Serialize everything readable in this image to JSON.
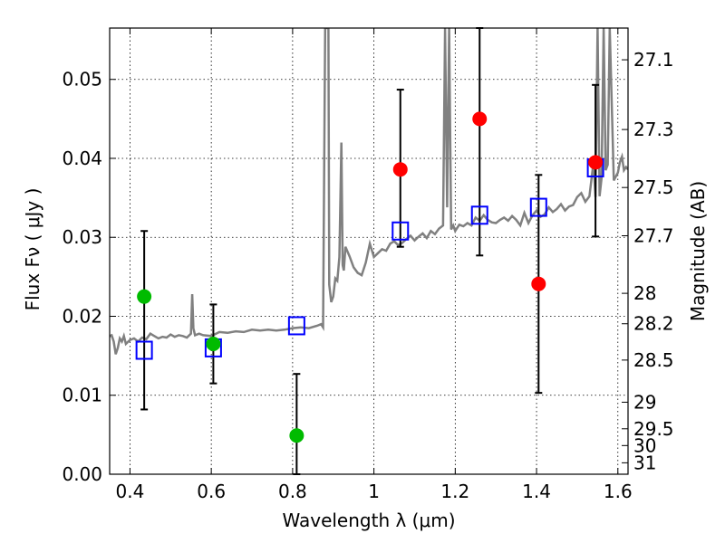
{
  "chart_data": {
    "type": "scatter",
    "xlabel": "Wavelength  λ (μm)",
    "ylabel": "Flux  Fν  ( μJy )",
    "ylabel_right": "Magnitude (AB)",
    "xlim": [
      0.35,
      1.625
    ],
    "ylim": [
      0.0,
      0.0565
    ],
    "grid": true,
    "x_ticks": [
      {
        "value": 0.4,
        "label": "0.4"
      },
      {
        "value": 0.6,
        "label": "0.6"
      },
      {
        "value": 0.8,
        "label": "0.8"
      },
      {
        "value": 1.0,
        "label": "1"
      },
      {
        "value": 1.2,
        "label": "1.2"
      },
      {
        "value": 1.4,
        "label": "1.4"
      },
      {
        "value": 1.6,
        "label": "1.6"
      }
    ],
    "y_ticks": [
      {
        "value": 0.0,
        "label": "0.00"
      },
      {
        "value": 0.01,
        "label": "0.01"
      },
      {
        "value": 0.02,
        "label": "0.02"
      },
      {
        "value": 0.03,
        "label": "0.03"
      },
      {
        "value": 0.04,
        "label": "0.04"
      },
      {
        "value": 0.05,
        "label": "0.05"
      }
    ],
    "right_ticks": [
      {
        "mag": 27.1,
        "label": "27.1"
      },
      {
        "mag": 27.3,
        "label": "27.3"
      },
      {
        "mag": 27.5,
        "label": "27.5"
      },
      {
        "mag": 27.7,
        "label": "27.7"
      },
      {
        "mag": 28.0,
        "label": "28"
      },
      {
        "mag": 28.2,
        "label": "28.2"
      },
      {
        "mag": 28.5,
        "label": "28.5"
      },
      {
        "mag": 29.0,
        "label": "29"
      },
      {
        "mag": 29.5,
        "label": "29.5"
      },
      {
        "mag": 30.0,
        "label": "30"
      },
      {
        "mag": 31.0,
        "label": "31"
      }
    ],
    "spectrum": {
      "color": "#808080",
      "x": [
        0.35,
        0.355,
        0.36,
        0.365,
        0.37,
        0.375,
        0.38,
        0.385,
        0.39,
        0.4,
        0.41,
        0.42,
        0.43,
        0.44,
        0.45,
        0.46,
        0.47,
        0.48,
        0.49,
        0.5,
        0.51,
        0.52,
        0.53,
        0.54,
        0.55,
        0.553,
        0.556,
        0.56,
        0.57,
        0.58,
        0.6,
        0.62,
        0.64,
        0.66,
        0.68,
        0.7,
        0.72,
        0.74,
        0.76,
        0.78,
        0.8,
        0.82,
        0.84,
        0.86,
        0.87,
        0.875,
        0.88,
        0.882,
        0.885,
        0.888,
        0.89,
        0.895,
        0.9,
        0.905,
        0.91,
        0.915,
        0.92,
        0.923,
        0.926,
        0.93,
        0.94,
        0.95,
        0.96,
        0.97,
        0.98,
        0.99,
        1.0,
        1.01,
        1.02,
        1.03,
        1.04,
        1.05,
        1.06,
        1.07,
        1.08,
        1.09,
        1.1,
        1.11,
        1.12,
        1.13,
        1.14,
        1.15,
        1.16,
        1.17,
        1.175,
        1.18,
        1.185,
        1.19,
        1.195,
        1.2,
        1.21,
        1.22,
        1.23,
        1.24,
        1.25,
        1.26,
        1.27,
        1.28,
        1.29,
        1.3,
        1.31,
        1.32,
        1.33,
        1.34,
        1.35,
        1.36,
        1.37,
        1.38,
        1.39,
        1.4,
        1.41,
        1.42,
        1.43,
        1.44,
        1.45,
        1.46,
        1.47,
        1.48,
        1.49,
        1.5,
        1.51,
        1.52,
        1.53,
        1.54,
        1.545,
        1.55,
        1.555,
        1.56,
        1.565,
        1.57,
        1.575,
        1.58,
        1.59,
        1.6,
        1.605,
        1.61,
        1.615,
        1.62,
        1.625
      ],
      "y": [
        0.0175,
        0.0176,
        0.0168,
        0.0152,
        0.016,
        0.0172,
        0.0168,
        0.0175,
        0.0165,
        0.017,
        0.0172,
        0.0168,
        0.0173,
        0.0171,
        0.0178,
        0.0175,
        0.0172,
        0.0174,
        0.0173,
        0.0177,
        0.0174,
        0.0176,
        0.0175,
        0.0173,
        0.0178,
        0.0228,
        0.0185,
        0.0176,
        0.0178,
        0.0176,
        0.0175,
        0.018,
        0.0179,
        0.0181,
        0.018,
        0.0183,
        0.0182,
        0.0183,
        0.0182,
        0.0183,
        0.0185,
        0.0186,
        0.0185,
        0.0188,
        0.019,
        0.0186,
        0.0565,
        0.0565,
        0.0565,
        0.0565,
        0.024,
        0.0218,
        0.0225,
        0.0248,
        0.0245,
        0.0275,
        0.042,
        0.0265,
        0.0258,
        0.0288,
        0.0276,
        0.0262,
        0.0255,
        0.0252,
        0.0268,
        0.0292,
        0.0275,
        0.028,
        0.0285,
        0.0283,
        0.0292,
        0.0295,
        0.029,
        0.0293,
        0.0298,
        0.0302,
        0.0296,
        0.0301,
        0.0305,
        0.0299,
        0.0308,
        0.0304,
        0.0311,
        0.0315,
        0.0565,
        0.0338,
        0.0565,
        0.031,
        0.0315,
        0.0308,
        0.0316,
        0.0314,
        0.0318,
        0.0315,
        0.0325,
        0.0321,
        0.0328,
        0.0322,
        0.0319,
        0.0318,
        0.0322,
        0.0325,
        0.0321,
        0.0327,
        0.0322,
        0.0315,
        0.0331,
        0.0318,
        0.0328,
        0.0334,
        0.0326,
        0.0329,
        0.0338,
        0.0332,
        0.0336,
        0.0342,
        0.0334,
        0.0339,
        0.0341,
        0.0351,
        0.0356,
        0.0345,
        0.0352,
        0.0395,
        0.0351,
        0.0565,
        0.0352,
        0.0375,
        0.0565,
        0.0385,
        0.0392,
        0.0565,
        0.0372,
        0.0382,
        0.0395,
        0.0402,
        0.0385,
        0.0389,
        0.0386
      ]
    },
    "model_points": {
      "marker": "open-square",
      "color": "#0000ff",
      "x": [
        0.435,
        0.605,
        0.81,
        1.065,
        1.26,
        1.405,
        1.545
      ],
      "y": [
        0.0157,
        0.016,
        0.0188,
        0.0308,
        0.0328,
        0.0338,
        0.0388
      ]
    },
    "observed_points": [
      {
        "x": 0.435,
        "y": 0.0225,
        "err_low": 0.0082,
        "err_high": 0.0308,
        "color": "#00bb00"
      },
      {
        "x": 0.605,
        "y": 0.0165,
        "err_low": 0.0115,
        "err_high": 0.0215,
        "color": "#00bb00"
      },
      {
        "x": 0.81,
        "y": 0.0049,
        "err_low": 0.0,
        "err_high": 0.0127,
        "color": "#00bb00"
      },
      {
        "x": 1.065,
        "y": 0.0386,
        "err_low": 0.0288,
        "err_high": 0.0487,
        "color": "#ff0000"
      },
      {
        "x": 1.26,
        "y": 0.045,
        "err_low": 0.0277,
        "err_high": 0.0565,
        "color": "#ff0000"
      },
      {
        "x": 1.405,
        "y": 0.0241,
        "err_low": 0.0103,
        "err_high": 0.0379,
        "color": "#ff0000"
      },
      {
        "x": 1.545,
        "y": 0.0395,
        "err_low": 0.0301,
        "err_high": 0.0493,
        "color": "#ff0000"
      }
    ]
  }
}
